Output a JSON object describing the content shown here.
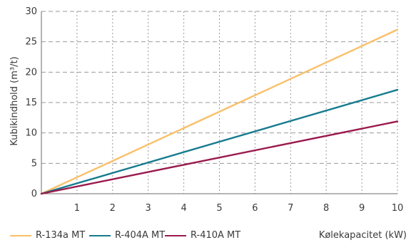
{
  "chart_data": {
    "type": "line",
    "xlabel": "Kølekapacitet (kW)",
    "ylabel": "Kubikindhold (m³/t)",
    "xlim": [
      0,
      10
    ],
    "ylim": [
      0,
      30
    ],
    "xticks": [
      1,
      2,
      3,
      4,
      5,
      6,
      7,
      8,
      9,
      10
    ],
    "yticks": [
      0,
      5,
      10,
      15,
      20,
      25,
      30
    ],
    "grid": {
      "vertical": "dotted",
      "horizontal": "dashed"
    },
    "legend_position": "bottom-left",
    "series": [
      {
        "name": "R-134a MT",
        "color": "#F9C06A",
        "x": [
          0,
          10
        ],
        "y": [
          0,
          27.0
        ]
      },
      {
        "name": "R-404A MT",
        "color": "#167B8F",
        "x": [
          0,
          10
        ],
        "y": [
          0,
          17.1
        ]
      },
      {
        "name": "R-410A MT",
        "color": "#9A1B4E",
        "x": [
          0,
          10
        ],
        "y": [
          0,
          11.9
        ]
      }
    ]
  }
}
